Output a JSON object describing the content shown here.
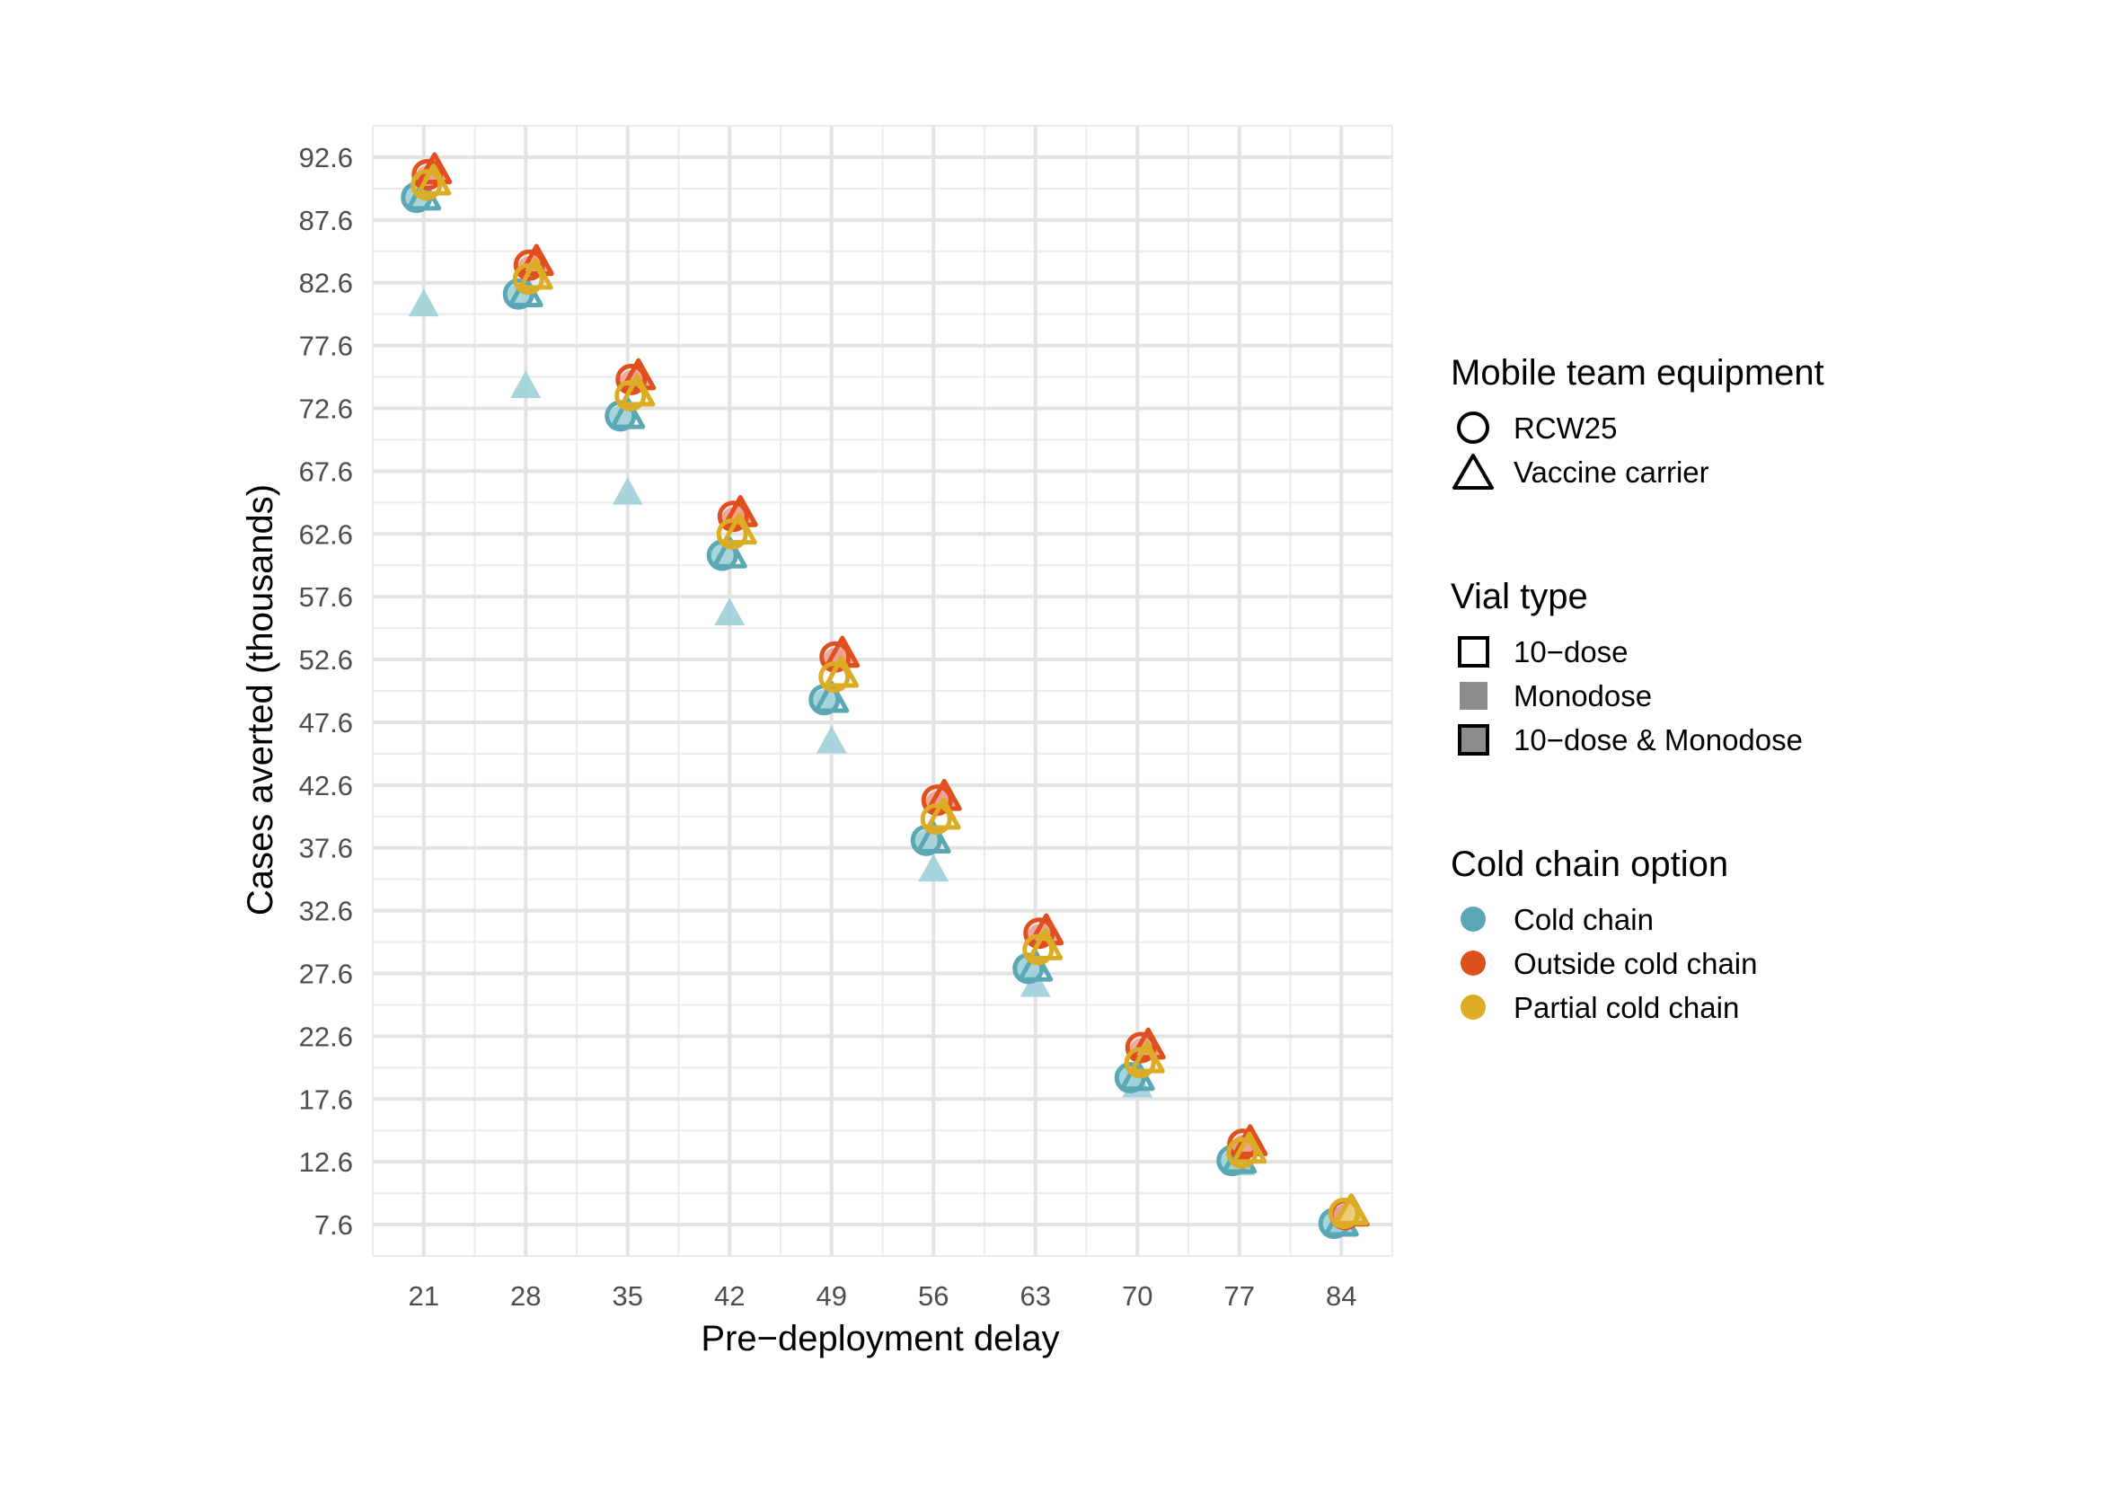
{
  "chart_data": {
    "type": "scatter",
    "xlabel": "Pre−deployment delay",
    "ylabel": "Cases averted (thousands)",
    "x_ticks": [
      "21",
      "28",
      "35",
      "42",
      "49",
      "56",
      "63",
      "70",
      "77",
      "84"
    ],
    "y_ticks": [
      "7.6",
      "12.6",
      "17.6",
      "22.6",
      "27.6",
      "32.6",
      "37.6",
      "42.6",
      "47.6",
      "52.6",
      "57.6",
      "62.6",
      "67.6",
      "72.6",
      "77.6",
      "82.6",
      "87.6",
      "92.6"
    ],
    "xlim": [
      17.5,
      87.5
    ],
    "ylim": [
      5.1,
      95.1
    ],
    "grid": true,
    "legend_position": "right",
    "colors": {
      "Cold chain": "#5ba8b5",
      "Outside cold chain": "#e0501e",
      "Partial cold chain": "#dcad24",
      "Cold chain light": "#9fd0d8",
      "Outside cold chain light": "#f0a090",
      "Partial cold chain light": "#ebd27c"
    },
    "series": [
      {
        "equipment": "RCW25",
        "vial": "10-dose",
        "cold_chain": "Outside cold chain",
        "x": [
          21,
          28,
          35,
          42,
          49,
          56,
          63,
          70,
          77,
          84
        ],
        "y": [
          91.2,
          84.0,
          74.9,
          64.0,
          52.8,
          41.4,
          30.8,
          21.7,
          14.0,
          8.4
        ]
      },
      {
        "equipment": "Vaccine carrier",
        "vial": "10-dose",
        "cold_chain": "Outside cold chain",
        "x": [
          21,
          28,
          35,
          42,
          49,
          56,
          63,
          70,
          77,
          84
        ],
        "y": [
          91.6,
          84.3,
          75.2,
          64.3,
          53.1,
          41.7,
          31.0,
          21.9,
          14.2,
          8.6
        ]
      },
      {
        "equipment": "RCW25",
        "vial": "Monodose",
        "cold_chain": "Outside cold chain",
        "x": [
          21,
          28,
          35,
          42,
          49,
          56,
          63,
          70,
          77,
          84
        ],
        "y": [
          91.0,
          83.8,
          74.7,
          63.8,
          52.6,
          41.2,
          30.6,
          21.5,
          13.8,
          8.3
        ]
      },
      {
        "equipment": "Vaccine carrier",
        "vial": "Monodose",
        "cold_chain": "Outside cold chain",
        "x": [
          21,
          28,
          35,
          42,
          49,
          56,
          63,
          70,
          77,
          84
        ],
        "y": [
          91.4,
          84.1,
          75.0,
          64.1,
          52.9,
          41.5,
          30.8,
          21.7,
          14.1,
          8.5
        ]
      },
      {
        "equipment": "RCW25",
        "vial": "10-dose",
        "cold_chain": "Partial cold chain",
        "x": [
          21,
          28,
          35,
          42,
          49,
          56,
          63,
          70,
          77,
          84
        ],
        "y": [
          90.4,
          82.9,
          73.6,
          62.6,
          51.2,
          39.9,
          29.5,
          20.5,
          13.3,
          8.5
        ]
      },
      {
        "equipment": "Vaccine carrier",
        "vial": "10-dose",
        "cold_chain": "Partial cold chain",
        "x": [
          21,
          28,
          35,
          42,
          49,
          56,
          63,
          70,
          77,
          84
        ],
        "y": [
          90.7,
          83.2,
          73.9,
          62.9,
          51.5,
          40.2,
          29.8,
          20.8,
          13.6,
          8.7
        ]
      },
      {
        "equipment": "Vaccine carrier",
        "vial": "Monodose",
        "cold_chain": "Partial cold chain",
        "x": [
          84
        ],
        "y": [
          8.6
        ]
      },
      {
        "equipment": "RCW25",
        "vial": "10-dose",
        "cold_chain": "Cold chain",
        "x": [
          21,
          28,
          35,
          42,
          49,
          56,
          63,
          70,
          77,
          84
        ],
        "y": [
          89.4,
          81.7,
          72.0,
          60.9,
          49.4,
          38.2,
          28.0,
          19.3,
          12.7,
          7.7
        ]
      },
      {
        "equipment": "Vaccine carrier",
        "vial": "10-dose",
        "cold_chain": "Cold chain",
        "x": [
          21,
          28,
          35,
          42,
          49,
          56,
          63,
          70,
          77,
          84
        ],
        "y": [
          89.5,
          81.8,
          72.1,
          61.0,
          49.5,
          38.3,
          28.1,
          19.4,
          12.8,
          7.8
        ]
      },
      {
        "equipment": "RCW25",
        "vial": "Monodose",
        "cold_chain": "Cold chain",
        "x": [
          21,
          28,
          35,
          42,
          49,
          56,
          63,
          70,
          77,
          84
        ],
        "y": [
          89.4,
          81.6,
          71.9,
          60.9,
          49.3,
          38.1,
          28.0,
          19.3,
          12.6,
          7.7
        ]
      },
      {
        "equipment": "Vaccine carrier",
        "vial": "Monodose",
        "cold_chain": "Cold chain",
        "x": [
          21,
          28,
          35,
          42,
          49,
          56,
          63,
          70,
          77,
          84
        ],
        "y": [
          80.9,
          74.4,
          65.9,
          56.3,
          46.1,
          35.9,
          26.7,
          18.7,
          12.5,
          7.6
        ]
      }
    ]
  },
  "legend": {
    "equipment": {
      "title": "Mobile team equipment",
      "items": [
        {
          "label": "RCW25",
          "shape": "circle"
        },
        {
          "label": "Vaccine carrier",
          "shape": "triangle"
        }
      ]
    },
    "vial": {
      "title": "Vial type",
      "items": [
        {
          "label": "10−dose",
          "style": "outline"
        },
        {
          "label": "Monodose",
          "style": "filled"
        },
        {
          "label": "10−dose & Monodose",
          "style": "both"
        }
      ]
    },
    "cold_chain": {
      "title": "Cold chain option",
      "items": [
        {
          "label": "Cold chain",
          "color": "#5ba8b5"
        },
        {
          "label": "Outside cold chain",
          "color": "#e0501e"
        },
        {
          "label": "Partial cold chain",
          "color": "#dcad24"
        }
      ]
    }
  }
}
